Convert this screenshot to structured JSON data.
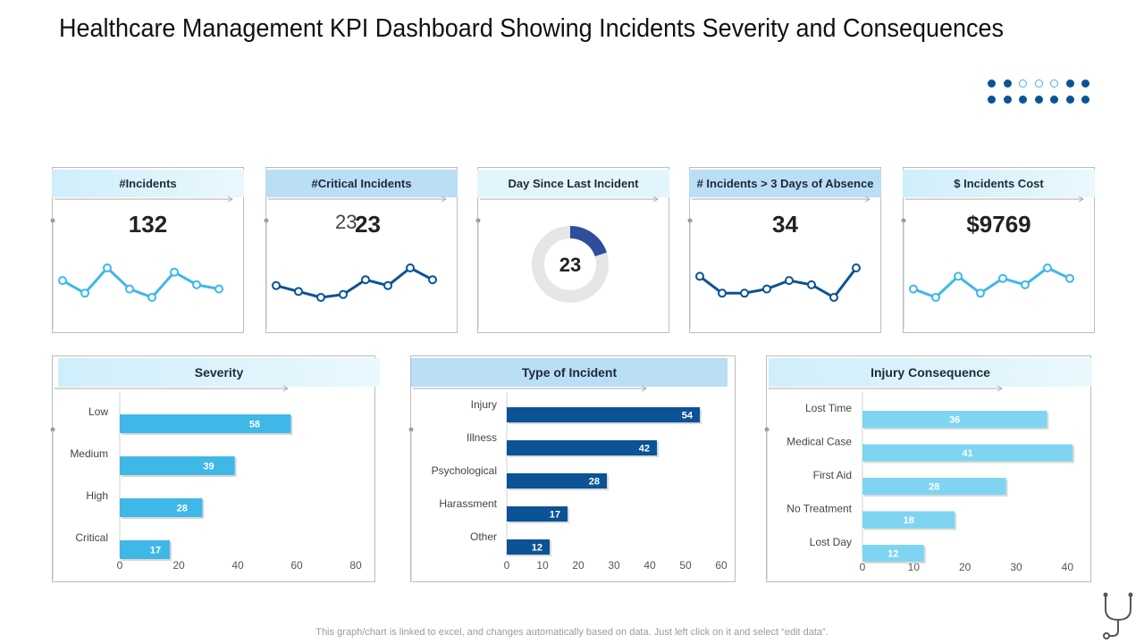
{
  "page": {
    "title": "Healthcare Management KPI Dashboard Showing Incidents Severity and Consequences",
    "footer": "This graph/chart is linked to excel,  and changes automatically based on data. Just left click on it and select “edit data”."
  },
  "colors": {
    "dark_blue": "#0b5394",
    "light_blue": "#3fb8e8",
    "pale_blue": "#dff3fb",
    "mid_header": "#b9def5",
    "bar_light": "#7fd5f1"
  },
  "kpis": [
    {
      "label": "#Incidents",
      "value": "132",
      "sparkline": [
        6,
        3,
        9,
        4,
        2,
        8,
        5,
        4
      ],
      "color": "#3fb8e8"
    },
    {
      "label": "#Critical Incidents",
      "value_ghost": "23",
      "value": "23",
      "sparkline": [
        4,
        3,
        2,
        2.5,
        5,
        4,
        7,
        5
      ],
      "color": "#0b5394"
    },
    {
      "label": "Day Since Last Incident",
      "value": "23",
      "donut_percent": 20
    },
    {
      "label": "# Incidents > 3 Days of Absence",
      "value": "34",
      "sparkline": [
        5,
        3,
        3,
        3.5,
        4.5,
        4,
        2.5,
        6
      ],
      "color": "#0b5394"
    },
    {
      "label": "$ Incidents Cost",
      "value": "$9769",
      "sparkline": [
        4,
        2,
        7,
        3,
        6.5,
        5,
        9,
        6.5
      ],
      "color": "#3fb8e8"
    }
  ],
  "chart_data": [
    {
      "type": "bar",
      "orientation": "horizontal",
      "title": "Severity",
      "categories": [
        "Low",
        "Medium",
        "High",
        "Critical"
      ],
      "values": [
        58,
        39,
        28,
        17
      ],
      "ticks": [
        "0",
        "20",
        "40",
        "60",
        "80"
      ],
      "xlim": [
        0,
        80
      ],
      "color": "#3fb8e8"
    },
    {
      "type": "bar",
      "orientation": "horizontal",
      "title": "Type of Incident",
      "categories": [
        "Injury",
        "Illness",
        "Psychological",
        "Harassment",
        "Other"
      ],
      "values": [
        54,
        42,
        28,
        17,
        12
      ],
      "ticks": [
        "0",
        "10",
        "20",
        "30",
        "40",
        "50",
        "60"
      ],
      "xlim": [
        0,
        60
      ],
      "color": "#0b5394"
    },
    {
      "type": "bar",
      "orientation": "horizontal",
      "title": "Injury Consequence",
      "categories": [
        "Lost Time",
        "Medical Case",
        "First Aid",
        "No Treatment",
        "Lost Day"
      ],
      "values": [
        36,
        41,
        28,
        18,
        12
      ],
      "ticks": [
        "0",
        "10",
        "20",
        "30",
        "40"
      ],
      "xlim": [
        0,
        45
      ],
      "color": "#7fd5f1"
    }
  ]
}
